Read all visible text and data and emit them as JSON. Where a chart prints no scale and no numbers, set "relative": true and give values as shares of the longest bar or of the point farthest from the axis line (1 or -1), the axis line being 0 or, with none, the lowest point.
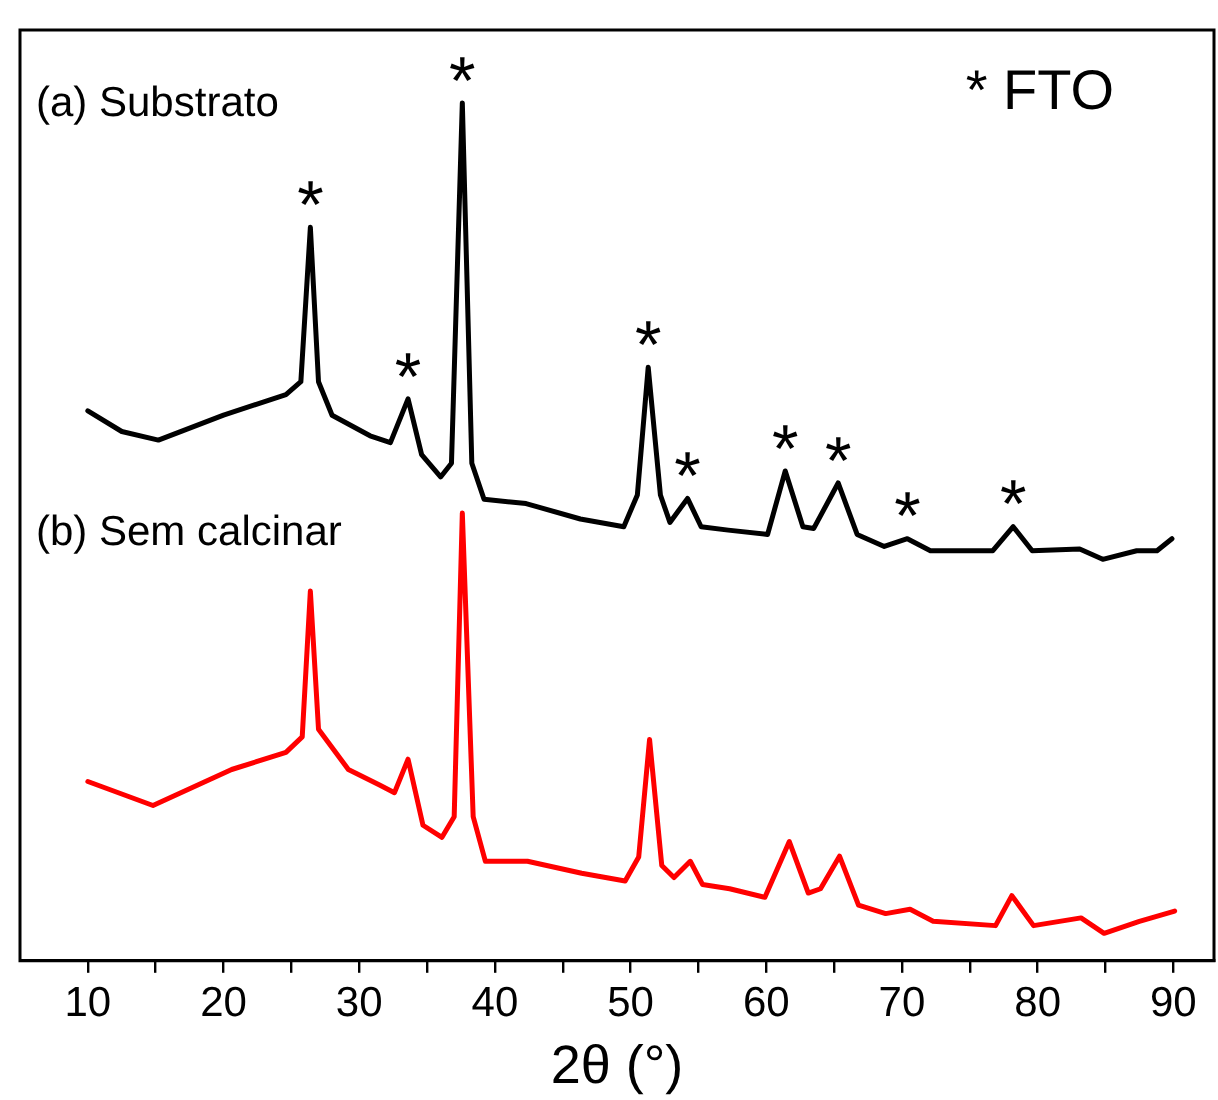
{
  "chart_data": {
    "type": "line",
    "relative": true,
    "xlabel": "2θ (°)",
    "xlim": [
      5,
      93
    ],
    "xticks": [
      10,
      {
        "value": 15,
        "label": null
      },
      20,
      {
        "value": 25,
        "label": null
      },
      30,
      {
        "value": 35,
        "label": null
      },
      40,
      {
        "value": 45,
        "label": null
      },
      50,
      {
        "value": 55,
        "label": null
      },
      60,
      {
        "value": 65,
        "label": null
      },
      70,
      {
        "value": 75,
        "label": null
      },
      80,
      {
        "value": 85,
        "label": null
      },
      90
    ],
    "tick_labels": "x",
    "grid": false,
    "legend": false,
    "marker": "none",
    "line_style": "solid",
    "series": [
      {
        "name": "(a) Substrato",
        "color": "#000000",
        "x": [
          10,
          12.5,
          15.2,
          20,
          24.6,
          25.7,
          26.4,
          27,
          28,
          30.8,
          32.3,
          33.6,
          34.6,
          36,
          36.8,
          37.6,
          38.3,
          39.2,
          42.3,
          46.3,
          49.5,
          50.5,
          51.3,
          52.2,
          52.9,
          54.2,
          55.2,
          57.2,
          60.1,
          61.4,
          62.7,
          63.5,
          65.3,
          66.7,
          68.7,
          70.4,
          72.1,
          76.7,
          78.2,
          79.6,
          83.1,
          84.8,
          87.3,
          88.8,
          89.9
        ],
        "values": [
          0.641,
          0.617,
          0.607,
          0.636,
          0.66,
          0.675,
          0.855,
          0.675,
          0.636,
          0.612,
          0.604,
          0.655,
          0.59,
          0.564,
          0.58,
          1.0,
          0.58,
          0.538,
          0.533,
          0.515,
          0.506,
          0.543,
          0.692,
          0.543,
          0.511,
          0.539,
          0.506,
          0.502,
          0.497,
          0.571,
          0.506,
          0.504,
          0.557,
          0.497,
          0.483,
          0.492,
          0.478,
          0.478,
          0.506,
          0.478,
          0.48,
          0.468,
          0.478,
          0.478,
          0.492
        ]
      },
      {
        "name": "(b) Sem calcinar",
        "color": "#ff0000",
        "x": [
          10,
          14.8,
          20.6,
          24.6,
          25.8,
          26.4,
          27,
          29.2,
          31.5,
          32.6,
          33.6,
          34.7,
          36.1,
          37,
          37.6,
          38.4,
          39.3,
          42.4,
          46.4,
          49.6,
          50.6,
          51.4,
          52.3,
          53.2,
          54.4,
          55.3,
          57.3,
          59.9,
          61.7,
          63.1,
          64,
          65.4,
          66.8,
          68.8,
          70.6,
          72.3,
          76.9,
          78.1,
          79.7,
          83.2,
          84.9,
          87.5,
          90.1
        ],
        "values": [
          0.209,
          0.181,
          0.223,
          0.243,
          0.261,
          0.431,
          0.27,
          0.223,
          0.205,
          0.196,
          0.235,
          0.158,
          0.144,
          0.168,
          0.522,
          0.168,
          0.116,
          0.116,
          0.102,
          0.093,
          0.121,
          0.258,
          0.111,
          0.097,
          0.116,
          0.089,
          0.084,
          0.074,
          0.139,
          0.079,
          0.084,
          0.122,
          0.065,
          0.055,
          0.06,
          0.046,
          0.041,
          0.076,
          0.041,
          0.05,
          0.032,
          0.046,
          0.058
        ]
      }
    ],
    "annotations": [
      "* FTO",
      {
        "text": "*",
        "x": 26.4,
        "y": 0.855
      },
      {
        "text": "*",
        "x": 33.6,
        "y": 0.655
      },
      {
        "text": "*",
        "x": 37.6,
        "y": 1.0
      },
      {
        "text": "*",
        "x": 51.3,
        "y": 0.692
      },
      {
        "text": "*",
        "x": 54.2,
        "y": 0.539
      },
      {
        "text": "*",
        "x": 61.4,
        "y": 0.571
      },
      {
        "text": "*",
        "x": 65.3,
        "y": 0.557
      },
      {
        "text": "*",
        "x": 70.4,
        "y": 0.492
      },
      {
        "text": "*",
        "x": 78.2,
        "y": 0.506
      }
    ]
  }
}
